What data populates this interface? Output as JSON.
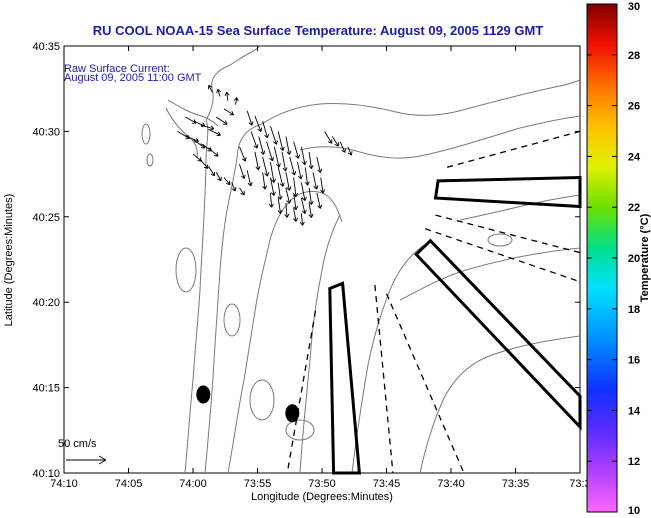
{
  "chart_data": {
    "type": "map",
    "title": "RU COOL  NOAA-15  Sea Surface Temperature:  August 09, 2005 1129 GMT",
    "inset_label": "Raw Surface Current:",
    "inset_time": "August 09, 2005 11:00 GMT",
    "scale_label": "50 cm/s",
    "scale_speed_cm_s": 50,
    "xlabel": "Longitude (Degrees:Minutes)",
    "ylabel": "Latitude (Degrees:Minutes)",
    "x_ticks": [
      {
        "value": -74.1667,
        "label": "74:10"
      },
      {
        "value": -74.0833,
        "label": "74:05"
      },
      {
        "value": -74.0,
        "label": "74:00"
      },
      {
        "value": -73.9167,
        "label": "73:55"
      },
      {
        "value": -73.8333,
        "label": "73:50"
      },
      {
        "value": -73.75,
        "label": "73:45"
      },
      {
        "value": -73.6667,
        "label": "73:40"
      },
      {
        "value": -73.5833,
        "label": "73:35"
      },
      {
        "value": -73.5,
        "label": "73:3"
      }
    ],
    "y_ticks": [
      {
        "value": 40.1667,
        "label": "40:10"
      },
      {
        "value": 40.25,
        "label": "40:15"
      },
      {
        "value": 40.3333,
        "label": "40:20"
      },
      {
        "value": 40.4167,
        "label": "40:25"
      },
      {
        "value": 40.5,
        "label": "40:30"
      },
      {
        "value": 40.5833,
        "label": "40:35"
      }
    ],
    "xlim": [
      -74.1667,
      -73.5
    ],
    "ylim": [
      40.1667,
      40.5833
    ],
    "colorbar": {
      "label": "Temperature (°C)",
      "min": 10,
      "max": 30,
      "ticks": [
        "30",
        "28",
        "26",
        "24",
        "22",
        "20",
        "18",
        "16",
        "14",
        "12",
        "10"
      ]
    },
    "stations": [
      {
        "lon": -73.9867,
        "lat": 40.2433
      },
      {
        "lon": -73.8717,
        "lat": 40.225
      }
    ],
    "outline_boxes": [
      {
        "points": [
          [
            -73.6833,
            40.4517
          ],
          [
            -73.5,
            40.455
          ],
          [
            -73.5,
            40.4267
          ],
          [
            -73.6867,
            40.435
          ]
        ]
      },
      {
        "points": [
          [
            -73.7117,
            40.38
          ],
          [
            -73.5,
            40.2117
          ],
          [
            -73.5,
            40.2417
          ],
          [
            -73.6933,
            40.3933
          ]
        ]
      },
      {
        "points": [
          [
            -73.8233,
            40.3467
          ],
          [
            -73.8067,
            40.3517
          ],
          [
            -73.785,
            40.1667
          ],
          [
            -73.8183,
            40.1667
          ]
        ]
      }
    ],
    "dashed_rays": [
      {
        "from": [
          -73.6717,
          40.465
        ],
        "to": [
          -73.5,
          40.5
        ]
      },
      {
        "from": [
          -73.6867,
          40.4183
        ],
        "to": [
          -73.5,
          40.3817
        ]
      },
      {
        "from": [
          -73.7,
          40.405
        ],
        "to": [
          -73.5,
          40.3533
        ]
      },
      {
        "from": [
          -73.75,
          40.3417
        ],
        "to": [
          -73.65,
          40.1667
        ]
      },
      {
        "from": [
          -73.765,
          40.35
        ],
        "to": [
          -73.7417,
          40.1667
        ]
      },
      {
        "from": [
          -73.8417,
          40.325
        ],
        "to": [
          -73.8783,
          40.1667
        ]
      }
    ],
    "current_vectors": [
      {
        "lon": -74.01,
        "lat": 40.514,
        "u": 9,
        "v": -5
      },
      {
        "lon": -74.0,
        "lat": 40.51,
        "u": 10,
        "v": -4
      },
      {
        "lon": -73.99,
        "lat": 40.506,
        "u": 11,
        "v": -3
      },
      {
        "lon": -73.98,
        "lat": 40.502,
        "u": 10,
        "v": -5
      },
      {
        "lon": -73.97,
        "lat": 40.514,
        "u": 9,
        "v": -6
      },
      {
        "lon": -73.96,
        "lat": 40.522,
        "u": 8,
        "v": -5
      },
      {
        "lon": -74.02,
        "lat": 40.5,
        "u": 10,
        "v": -6
      },
      {
        "lon": -74.01,
        "lat": 40.496,
        "u": 11,
        "v": -5
      },
      {
        "lon": -74.0,
        "lat": 40.492,
        "u": 10,
        "v": -7
      },
      {
        "lon": -73.99,
        "lat": 40.488,
        "u": 9,
        "v": -6
      },
      {
        "lon": -73.98,
        "lat": 40.484,
        "u": 8,
        "v": -7
      },
      {
        "lon": -74.0,
        "lat": 40.478,
        "u": 7,
        "v": -6
      },
      {
        "lon": -73.99,
        "lat": 40.472,
        "u": 6,
        "v": -7
      },
      {
        "lon": -73.98,
        "lat": 40.466,
        "u": 5,
        "v": -8
      },
      {
        "lon": -73.97,
        "lat": 40.46,
        "u": 4,
        "v": -7
      },
      {
        "lon": -73.96,
        "lat": 40.455,
        "u": 5,
        "v": -6
      },
      {
        "lon": -73.95,
        "lat": 40.45,
        "u": 3,
        "v": -7
      },
      {
        "lon": -73.94,
        "lat": 40.445,
        "u": 4,
        "v": -6
      },
      {
        "lon": -73.975,
        "lat": 40.538,
        "u": -3,
        "v": 6
      },
      {
        "lon": -73.965,
        "lat": 40.534,
        "u": -2,
        "v": 6
      },
      {
        "lon": -73.955,
        "lat": 40.53,
        "u": -1,
        "v": 7
      },
      {
        "lon": -73.945,
        "lat": 40.526,
        "u": 1,
        "v": 6
      },
      {
        "lon": -73.93,
        "lat": 40.52,
        "u": 4,
        "v": -12
      },
      {
        "lon": -73.92,
        "lat": 40.515,
        "u": 5,
        "v": -13
      },
      {
        "lon": -73.91,
        "lat": 40.51,
        "u": 4,
        "v": -14
      },
      {
        "lon": -73.9,
        "lat": 40.505,
        "u": 5,
        "v": -15
      },
      {
        "lon": -73.89,
        "lat": 40.5,
        "u": 4,
        "v": -16
      },
      {
        "lon": -73.88,
        "lat": 40.495,
        "u": 3,
        "v": -15
      },
      {
        "lon": -73.87,
        "lat": 40.49,
        "u": 4,
        "v": -14
      },
      {
        "lon": -73.86,
        "lat": 40.485,
        "u": 3,
        "v": -15
      },
      {
        "lon": -73.85,
        "lat": 40.48,
        "u": 2,
        "v": -14
      },
      {
        "lon": -73.84,
        "lat": 40.475,
        "u": 3,
        "v": -13
      },
      {
        "lon": -73.925,
        "lat": 40.5,
        "u": 5,
        "v": -14
      },
      {
        "lon": -73.915,
        "lat": 40.495,
        "u": 4,
        "v": -15
      },
      {
        "lon": -73.905,
        "lat": 40.49,
        "u": 5,
        "v": -16
      },
      {
        "lon": -73.895,
        "lat": 40.485,
        "u": 4,
        "v": -17
      },
      {
        "lon": -73.885,
        "lat": 40.48,
        "u": 3,
        "v": -16
      },
      {
        "lon": -73.875,
        "lat": 40.475,
        "u": 4,
        "v": -15
      },
      {
        "lon": -73.865,
        "lat": 40.47,
        "u": 3,
        "v": -14
      },
      {
        "lon": -73.855,
        "lat": 40.465,
        "u": 2,
        "v": -15
      },
      {
        "lon": -73.845,
        "lat": 40.46,
        "u": 3,
        "v": -14
      },
      {
        "lon": -73.835,
        "lat": 40.455,
        "u": 2,
        "v": -13
      },
      {
        "lon": -73.92,
        "lat": 40.48,
        "u": 3,
        "v": -15
      },
      {
        "lon": -73.91,
        "lat": 40.475,
        "u": 4,
        "v": -16
      },
      {
        "lon": -73.9,
        "lat": 40.47,
        "u": 3,
        "v": -17
      },
      {
        "lon": -73.89,
        "lat": 40.465,
        "u": 4,
        "v": -16
      },
      {
        "lon": -73.88,
        "lat": 40.46,
        "u": 3,
        "v": -15
      },
      {
        "lon": -73.87,
        "lat": 40.455,
        "u": 2,
        "v": -16
      },
      {
        "lon": -73.86,
        "lat": 40.45,
        "u": 3,
        "v": -15
      },
      {
        "lon": -73.85,
        "lat": 40.445,
        "u": 2,
        "v": -14
      },
      {
        "lon": -73.84,
        "lat": 40.44,
        "u": 3,
        "v": -13
      },
      {
        "lon": -73.91,
        "lat": 40.46,
        "u": 2,
        "v": -14
      },
      {
        "lon": -73.9,
        "lat": 40.455,
        "u": 3,
        "v": -15
      },
      {
        "lon": -73.89,
        "lat": 40.45,
        "u": 2,
        "v": -14
      },
      {
        "lon": -73.88,
        "lat": 40.445,
        "u": 3,
        "v": -13
      },
      {
        "lon": -73.87,
        "lat": 40.44,
        "u": 2,
        "v": -14
      },
      {
        "lon": -73.86,
        "lat": 40.435,
        "u": 3,
        "v": -13
      },
      {
        "lon": -73.85,
        "lat": 40.43,
        "u": 2,
        "v": -12
      },
      {
        "lon": -73.9,
        "lat": 40.44,
        "u": 1,
        "v": -12
      },
      {
        "lon": -73.89,
        "lat": 40.435,
        "u": 2,
        "v": -13
      },
      {
        "lon": -73.88,
        "lat": 40.43,
        "u": 1,
        "v": -12
      },
      {
        "lon": -73.87,
        "lat": 40.425,
        "u": 2,
        "v": -11
      },
      {
        "lon": -73.86,
        "lat": 40.42,
        "u": 1,
        "v": -10
      },
      {
        "lon": -73.83,
        "lat": 40.5,
        "u": 6,
        "v": -10
      },
      {
        "lon": -73.82,
        "lat": 40.495,
        "u": 5,
        "v": -8
      },
      {
        "lon": -73.81,
        "lat": 40.49,
        "u": 4,
        "v": -9
      },
      {
        "lon": -73.8,
        "lat": 40.485,
        "u": 3,
        "v": -7
      },
      {
        "lon": -73.94,
        "lat": 40.468,
        "u": 4,
        "v": -12
      },
      {
        "lon": -73.93,
        "lat": 40.462,
        "u": 3,
        "v": -13
      },
      {
        "lon": -73.94,
        "lat": 40.485,
        "u": 5,
        "v": -12
      }
    ]
  }
}
